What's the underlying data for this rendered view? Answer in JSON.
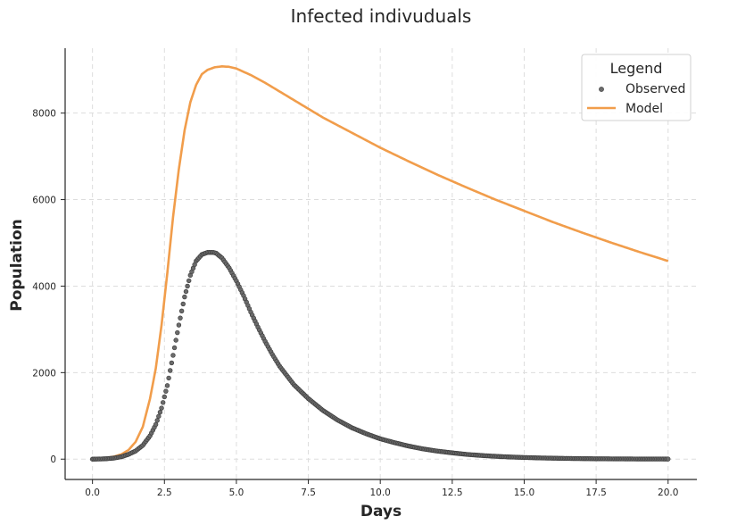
{
  "chart_data": {
    "type": "line",
    "title": "Infected indivuduals",
    "xlabel": "Days",
    "ylabel": "Population",
    "xlim": [
      -0.95,
      21.0
    ],
    "ylim": [
      -470,
      9500
    ],
    "xticks": [
      0.0,
      2.5,
      5.0,
      7.5,
      10.0,
      12.5,
      15.0,
      17.5,
      20.0
    ],
    "xtick_labels": [
      "0.0",
      "2.5",
      "5.0",
      "7.5",
      "10.0",
      "12.5",
      "15.0",
      "17.5",
      "20.0"
    ],
    "yticks": [
      0,
      2000,
      4000,
      6000,
      8000
    ],
    "ytick_labels": [
      "0",
      "2000",
      "4000",
      "6000",
      "8000"
    ],
    "grid": true,
    "legend": {
      "title": "Legend",
      "placement": "top-right"
    },
    "series": [
      {
        "name": "Observed",
        "kind": "scatter",
        "color": "#6b6b6b",
        "edge_color": "#3a3a3a",
        "x": [
          0.0,
          0.25,
          0.5,
          0.75,
          1.0,
          1.25,
          1.5,
          1.75,
          2.0,
          2.2,
          2.4,
          2.6,
          2.8,
          3.0,
          3.2,
          3.4,
          3.6,
          3.8,
          4.0,
          4.2,
          4.3,
          4.5,
          4.75,
          5.0,
          5.25,
          5.5,
          5.75,
          6.0,
          6.25,
          6.5,
          7.0,
          7.5,
          8.0,
          8.5,
          9.0,
          9.5,
          10.0,
          10.5,
          11.0,
          11.5,
          12.0,
          12.5,
          13.0,
          13.5,
          14.0,
          14.5,
          15.0,
          15.5,
          16.0,
          16.5,
          17.0,
          17.5,
          18.0,
          18.5,
          19.0,
          19.5,
          20.0
        ],
        "y": [
          0,
          3,
          10,
          25,
          55,
          110,
          190,
          320,
          540,
          800,
          1180,
          1700,
          2400,
          3100,
          3750,
          4250,
          4580,
          4730,
          4780,
          4780,
          4760,
          4650,
          4420,
          4120,
          3780,
          3400,
          3050,
          2720,
          2420,
          2150,
          1720,
          1400,
          1130,
          910,
          730,
          590,
          470,
          380,
          300,
          235,
          185,
          145,
          110,
          85,
          65,
          50,
          38,
          29,
          22,
          16,
          12,
          9,
          7,
          5,
          4,
          3,
          2
        ]
      },
      {
        "name": "Model",
        "kind": "line",
        "color": "#f19d4b",
        "x": [
          0.0,
          0.25,
          0.5,
          0.75,
          1.0,
          1.25,
          1.5,
          1.75,
          2.0,
          2.2,
          2.4,
          2.6,
          2.8,
          3.0,
          3.2,
          3.4,
          3.6,
          3.8,
          4.0,
          4.25,
          4.5,
          4.75,
          5.0,
          5.5,
          6.0,
          6.5,
          7.0,
          7.5,
          8.0,
          9.0,
          10.0,
          11.0,
          12.0,
          13.0,
          14.0,
          15.0,
          16.0,
          17.0,
          18.0,
          19.0,
          20.0
        ],
        "y": [
          0,
          10,
          30,
          60,
          110,
          210,
          400,
          750,
          1400,
          2100,
          3100,
          4300,
          5600,
          6700,
          7600,
          8250,
          8650,
          8900,
          9000,
          9060,
          9080,
          9070,
          9030,
          8880,
          8700,
          8500,
          8300,
          8100,
          7900,
          7550,
          7200,
          6880,
          6570,
          6280,
          6000,
          5740,
          5480,
          5240,
          5010,
          4790,
          4580
        ]
      }
    ]
  }
}
